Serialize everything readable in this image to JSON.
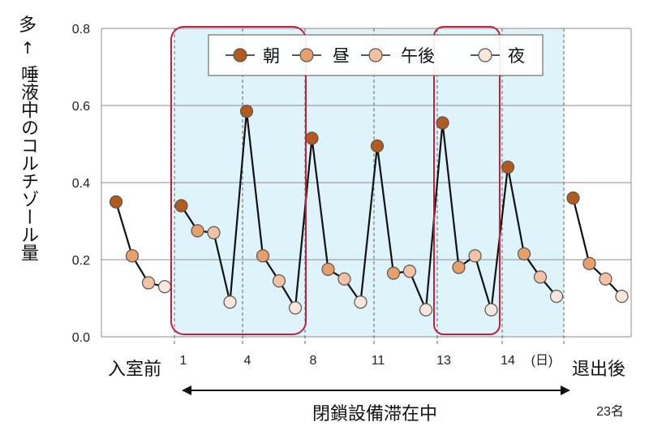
{
  "chart_data": {
    "type": "line",
    "ylabel_top": "多",
    "ylabel": "唾液中のコルチゾール量",
    "ylim": [
      0,
      0.8
    ],
    "yticks": [
      "0.0",
      "0.2",
      "0.4",
      "0.6",
      "0.8"
    ],
    "day_labels": [
      "入室前",
      "1",
      "4",
      "8",
      "11",
      "13",
      "14",
      "退出後"
    ],
    "day_unit": "(日)",
    "period_label": "閉鎖設備滞在中",
    "n_label": "23名",
    "legend": [
      "朝",
      "昼",
      "午後",
      "夜"
    ],
    "colors": {
      "朝": "#b35a1f",
      "昼": "#e8a06a",
      "午後": "#f2c2a2",
      "夜": "#f8e6dc"
    },
    "groups": [
      [
        0.35,
        0.21,
        0.14,
        0.13
      ],
      [
        0.34,
        0.275,
        0.27,
        0.09
      ],
      [
        0.585,
        0.21,
        0.145,
        0.075
      ],
      [
        0.515,
        0.175,
        0.15,
        0.09
      ],
      [
        0.495,
        0.165,
        0.17,
        0.07
      ],
      [
        0.555,
        0.18,
        0.21,
        0.07
      ],
      [
        0.44,
        0.215,
        0.155,
        0.105
      ],
      [
        0.36,
        0.19,
        0.15,
        0.105
      ]
    ]
  }
}
